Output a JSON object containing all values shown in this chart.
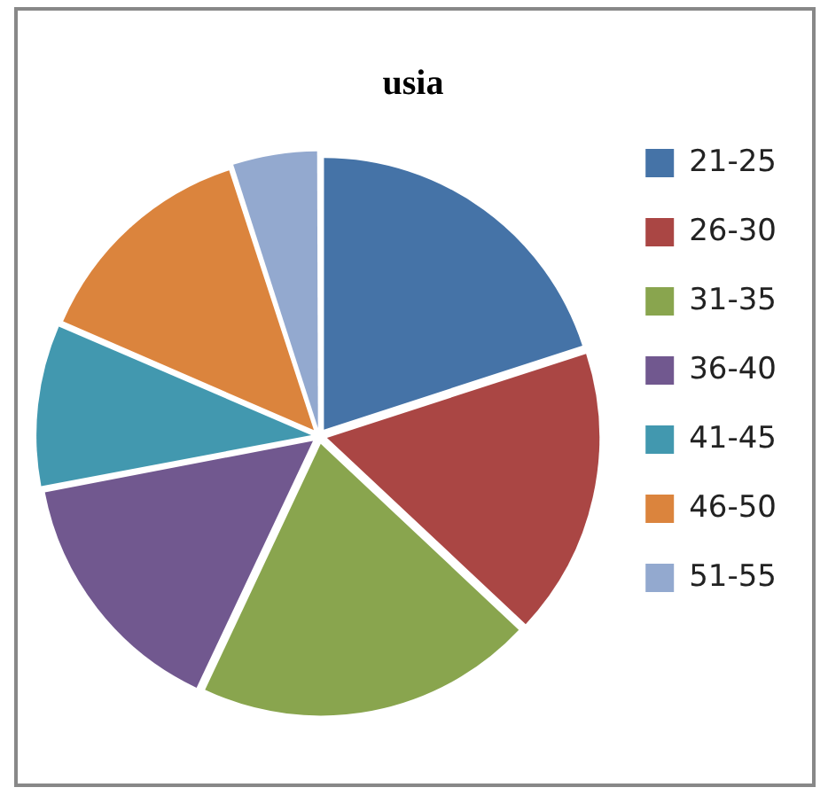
{
  "chart_data": {
    "type": "pie",
    "title": "usia",
    "categories": [
      "21-25",
      "26-30",
      "31-35",
      "36-40",
      "41-45",
      "46-50",
      "51-55"
    ],
    "values": [
      20,
      17,
      20,
      15,
      9.5,
      13.5,
      5
    ],
    "colors": [
      "#4573a7",
      "#aa4644",
      "#89a54e",
      "#71588f",
      "#4298af",
      "#db843d",
      "#93a9cf"
    ],
    "legend": "right"
  }
}
